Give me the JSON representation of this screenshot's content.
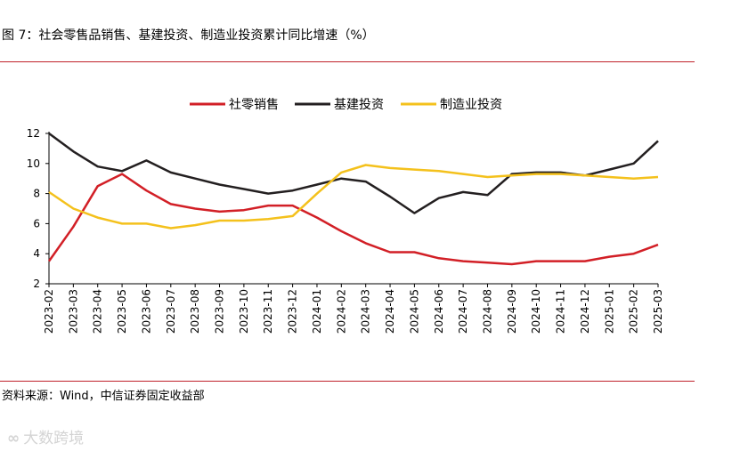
{
  "figure": {
    "title": "图 7：社会零售品销售、基建投资、制造业投资累计同比增速（%）",
    "source": "资料来源：Wind，中信证券固定收益部",
    "watermark": "大数跨境"
  },
  "chart_data": {
    "type": "line",
    "title": "图 7：社会零售品销售、基建投资、制造业投资累计同比增速（%）",
    "xlabel": "",
    "ylabel": "",
    "ylim": [
      2,
      12
    ],
    "yticks": [
      2,
      4,
      6,
      8,
      10,
      12
    ],
    "legend_position": "top-center",
    "categories": [
      "2023-02",
      "2023-03",
      "2023-04",
      "2023-05",
      "2023-06",
      "2023-07",
      "2023-08",
      "2023-09",
      "2023-10",
      "2023-11",
      "2023-12",
      "2024-01",
      "2024-02",
      "2024-03",
      "2024-04",
      "2024-05",
      "2024-06",
      "2024-07",
      "2024-08",
      "2024-09",
      "2024-10",
      "2024-11",
      "2024-12",
      "2025-01",
      "2025-02",
      "2025-03"
    ],
    "series": [
      {
        "name": "社零销售",
        "color": "#d21f26",
        "values": [
          3.5,
          5.8,
          8.5,
          9.3,
          8.2,
          7.3,
          7.0,
          6.8,
          6.9,
          7.2,
          7.2,
          6.4,
          5.5,
          4.7,
          4.1,
          4.1,
          3.7,
          3.5,
          3.4,
          3.3,
          3.5,
          3.5,
          3.5,
          3.8,
          4.0,
          4.6
        ]
      },
      {
        "name": "基建投资",
        "color": "#231f20",
        "values": [
          12.0,
          10.8,
          9.8,
          9.5,
          10.2,
          9.4,
          9.0,
          8.6,
          8.3,
          8.0,
          8.2,
          8.6,
          9.0,
          8.8,
          7.8,
          6.7,
          7.7,
          8.1,
          7.9,
          9.3,
          9.4,
          9.4,
          9.2,
          9.6,
          10.0,
          11.5
        ]
      },
      {
        "name": "制造业投资",
        "color": "#f4c11c",
        "values": [
          8.1,
          7.0,
          6.4,
          6.0,
          6.0,
          5.7,
          5.9,
          6.2,
          6.2,
          6.3,
          6.5,
          8.0,
          9.4,
          9.9,
          9.7,
          9.6,
          9.5,
          9.3,
          9.1,
          9.2,
          9.3,
          9.3,
          9.2,
          9.1,
          9.0,
          9.1
        ]
      }
    ]
  }
}
